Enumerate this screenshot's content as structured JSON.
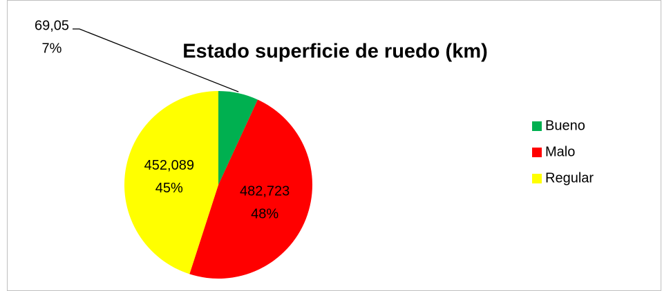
{
  "chart_data": {
    "type": "pie",
    "title": "Estado superficie de ruedo (km)",
    "categories": [
      "Bueno",
      "Malo",
      "Regular"
    ],
    "values": [
      69.05,
      482.723,
      452.089
    ],
    "value_labels": [
      "69,05",
      "482,723",
      "452,089"
    ],
    "percent_labels": [
      "7%",
      "48%",
      "45%"
    ],
    "colors": [
      "#00b050",
      "#ff0000",
      "#ffff00"
    ],
    "legend": "right"
  }
}
